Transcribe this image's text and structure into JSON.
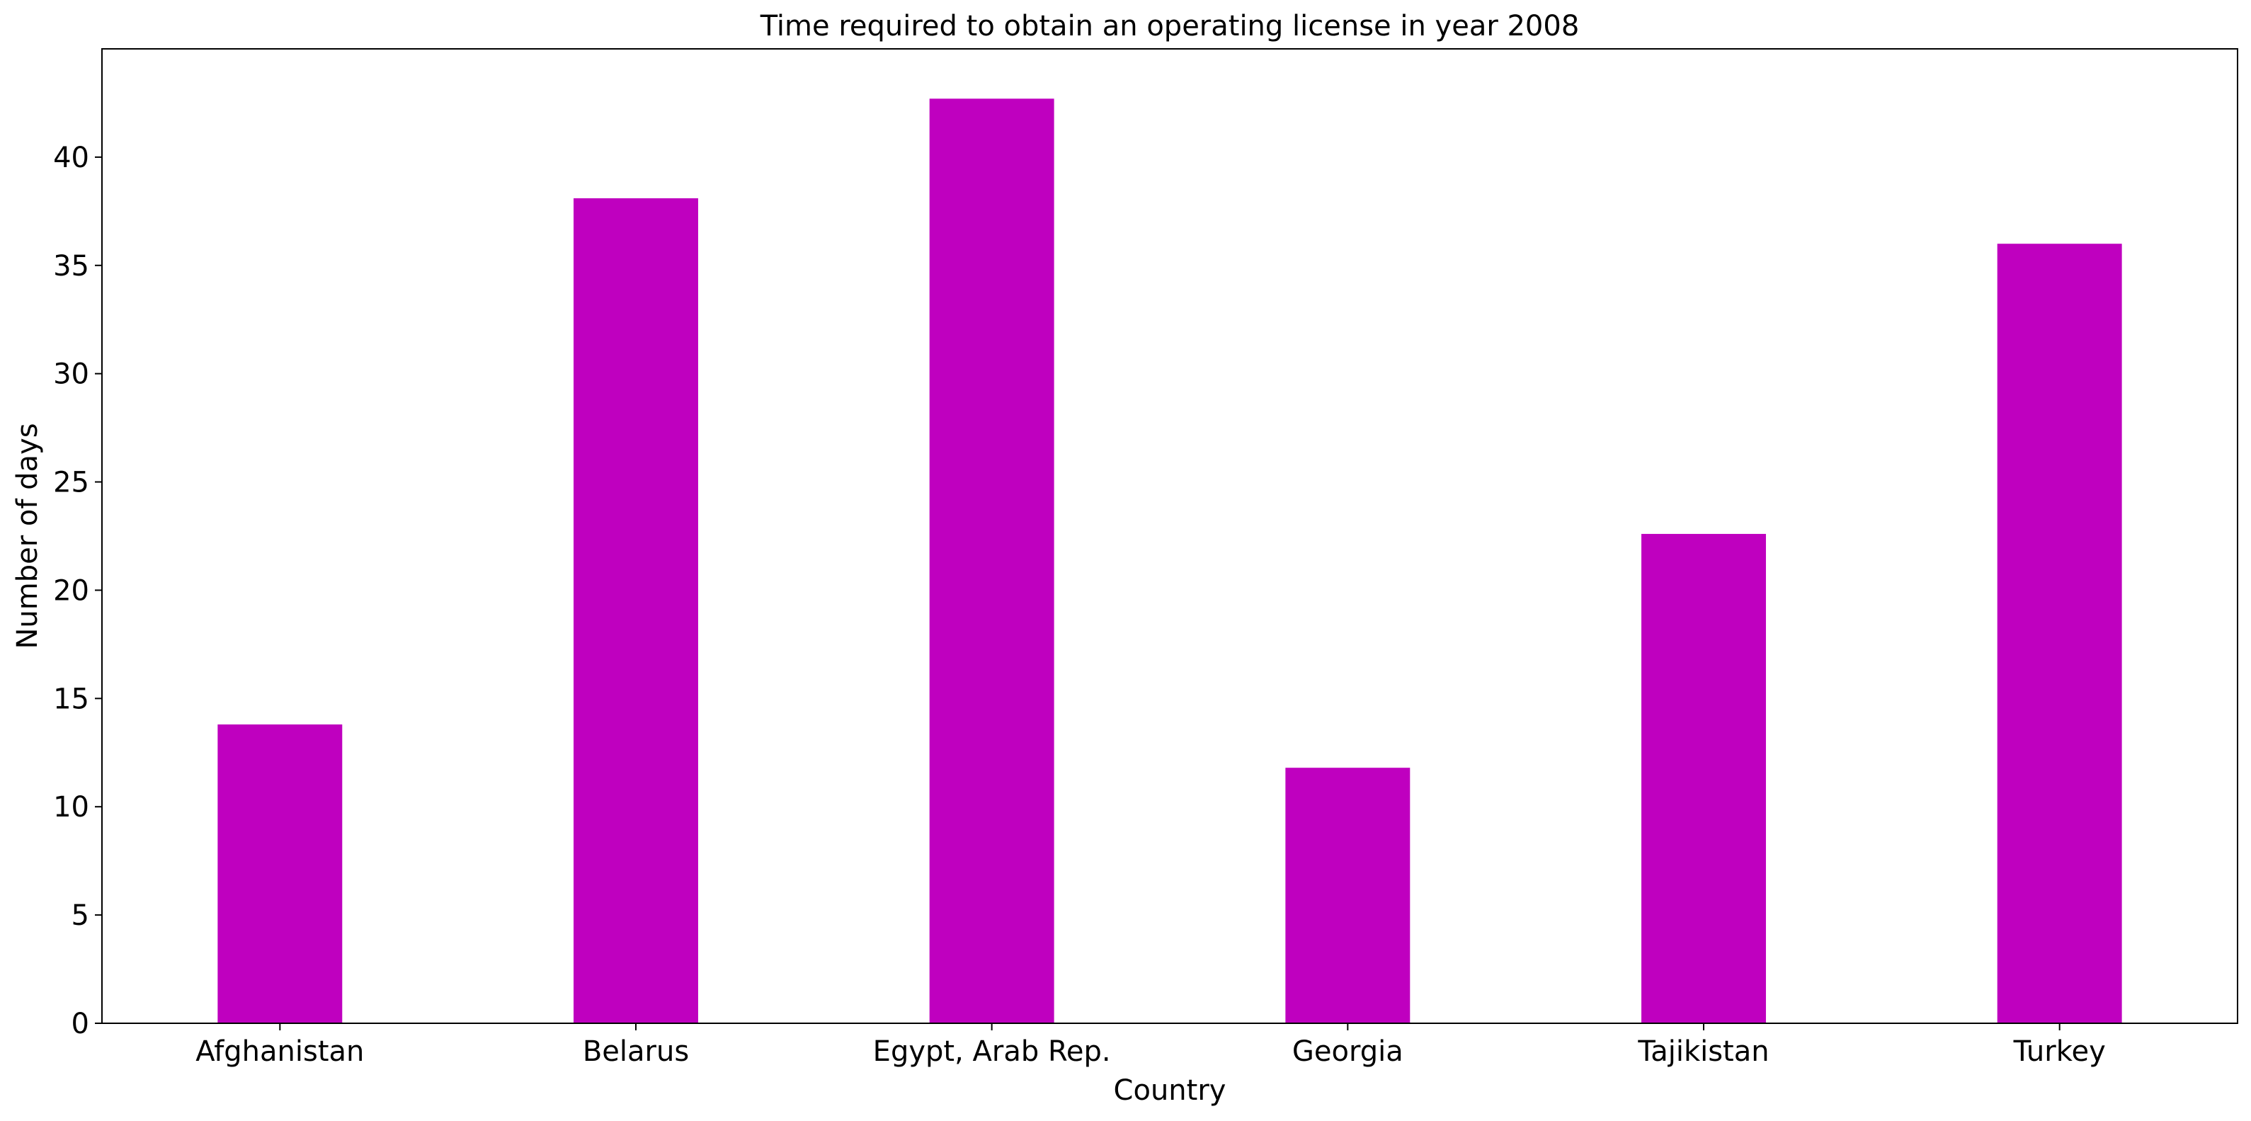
{
  "chart_data": {
    "type": "bar",
    "title": "Time required to obtain an operating license in year 2008",
    "xlabel": "Country",
    "ylabel": "Number of days",
    "categories": [
      "Afghanistan",
      "Belarus",
      "Egypt, Arab Rep.",
      "Georgia",
      "Tajikistan",
      "Turkey"
    ],
    "values": [
      13.8,
      38.1,
      42.7,
      11.8,
      22.6,
      36.0
    ],
    "ylim": [
      0,
      45
    ],
    "yticks": [
      0,
      5,
      10,
      15,
      20,
      25,
      30,
      35,
      40
    ],
    "ytick_labels": [
      "0",
      "5",
      "10",
      "15",
      "20",
      "25",
      "30",
      "35",
      "40"
    ],
    "grid": false,
    "legend": "none",
    "bar_color": "#bf00bf"
  }
}
